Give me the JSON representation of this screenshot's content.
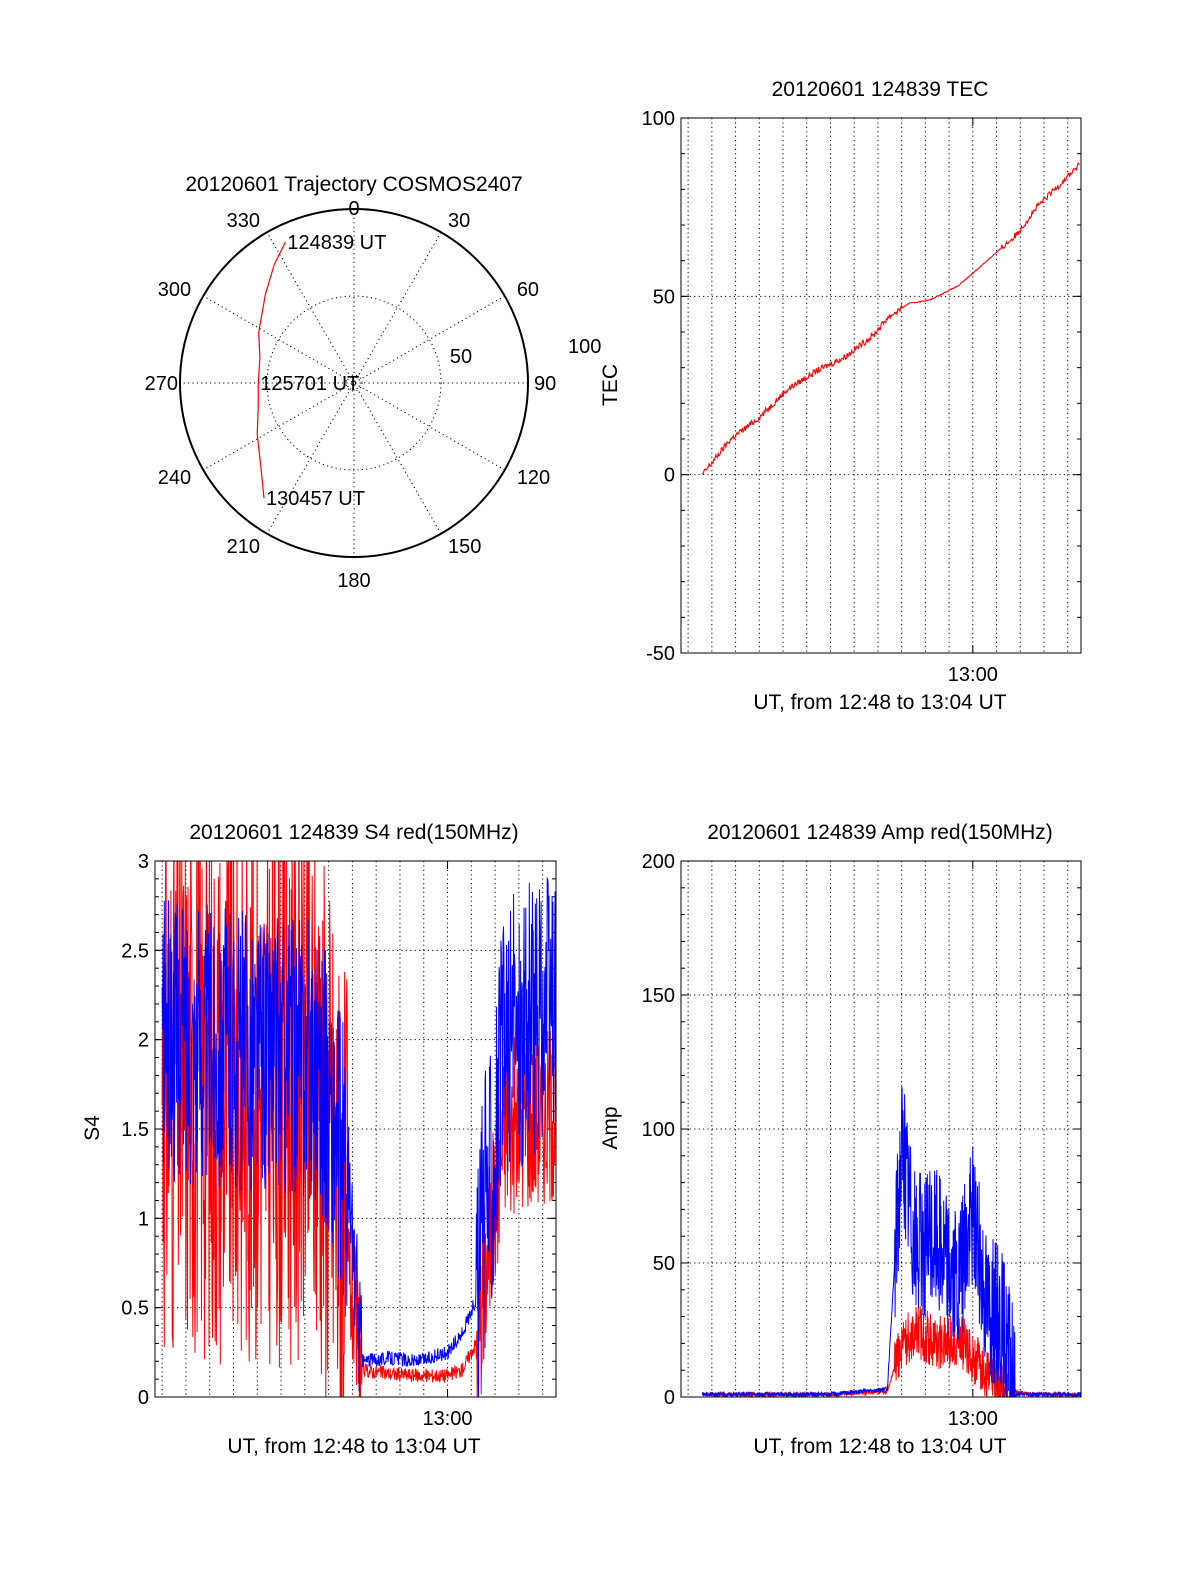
{
  "colors": {
    "red": "#ff0000",
    "blue": "#0000ff",
    "axis": "#000000"
  },
  "chart_data": [
    {
      "id": "trajectory",
      "type": "polar",
      "title": "20120601 Trajectory COSMOS2407",
      "azimuth_labels": [
        "0",
        "30",
        "60",
        "90",
        "120",
        "150",
        "180",
        "210",
        "240",
        "270",
        "300",
        "330"
      ],
      "radial_labels": [
        "50",
        "100"
      ],
      "r_range": [
        0,
        100
      ],
      "grid": true,
      "series": [
        {
          "color": "#ff0000",
          "points": [
            [
              334,
              90
            ],
            [
              326,
              82
            ],
            [
              315,
              72
            ],
            [
              298,
              62
            ],
            [
              285,
              56
            ],
            [
              270,
              55
            ],
            [
              255,
              57
            ],
            [
              242,
              63
            ],
            [
              228,
              72
            ],
            [
              218,
              84
            ]
          ]
        }
      ],
      "annotations": [
        {
          "text": "124839 UT",
          "az": 334,
          "r": 90
        },
        {
          "text": "125701 UT",
          "az": 270,
          "r": 55
        },
        {
          "text": "130457 UT",
          "az": 218,
          "r": 84
        }
      ]
    },
    {
      "id": "tec",
      "type": "line",
      "title": "20120601 124839 TEC",
      "xlabel": "UT, from 12:48 to 13:04 UT",
      "ylabel": "TEC",
      "xlim": [
        12.795,
        13.076
      ],
      "ylim": [
        -50,
        100
      ],
      "yticks": [
        -50,
        0,
        50,
        100
      ],
      "xticks": [
        {
          "value": 13.0,
          "label": "13:00"
        }
      ],
      "grid": true,
      "series": [
        {
          "color": "#ff0000",
          "x": [
            12.81,
            12.83,
            12.85,
            12.87,
            12.89,
            12.91,
            12.93,
            12.94,
            12.955,
            12.97,
            12.99,
            13.01,
            13.03,
            13.045,
            13.06,
            13.075
          ],
          "values": [
            0,
            10,
            16,
            24,
            29,
            33,
            39,
            44,
            48,
            49,
            53,
            60,
            67,
            75,
            81,
            87
          ]
        }
      ]
    },
    {
      "id": "s4",
      "type": "line",
      "title": "20120601 124839 S4 red(150MHz)",
      "xlabel": "UT, from 12:48 to 13:04 UT",
      "ylabel": "S4",
      "xlim": [
        12.795,
        13.076
      ],
      "ylim": [
        0,
        3
      ],
      "yticks": [
        0,
        0.5,
        1,
        1.5,
        2,
        2.5,
        3
      ],
      "xticks": [
        {
          "value": 13.0,
          "label": "13:00"
        }
      ],
      "grid": true,
      "series": [
        {
          "color": "#ff0000",
          "x": [
            12.8,
            12.91,
            12.92,
            12.93,
            12.94,
            12.96,
            12.98,
            13.0,
            13.01,
            13.02,
            13.04,
            13.076
          ],
          "values": [
            1.8,
            1.75,
            1.3,
            0.75,
            0.15,
            0.13,
            0.12,
            0.12,
            0.15,
            0.3,
            1.5,
            1.6
          ]
        },
        {
          "color": "#0000ff",
          "x": [
            12.8,
            12.91,
            12.92,
            12.93,
            12.94,
            12.96,
            12.98,
            13.0,
            13.01,
            13.02,
            13.04,
            13.076
          ],
          "values": [
            2.0,
            1.9,
            1.5,
            1.2,
            0.2,
            0.22,
            0.2,
            0.25,
            0.35,
            0.55,
            2.0,
            2.2
          ]
        }
      ]
    },
    {
      "id": "amp",
      "type": "line",
      "title": "20120601 124839 Amp red(150MHz)",
      "xlabel": "UT, from 12:48 to 13:04 UT",
      "ylabel": "Amp",
      "xlim": [
        12.795,
        13.076
      ],
      "ylim": [
        0,
        200
      ],
      "yticks": [
        0,
        50,
        100,
        150,
        200
      ],
      "xticks": [
        {
          "value": 13.0,
          "label": "13:00"
        }
      ],
      "grid": true,
      "series": [
        {
          "color": "#ff0000",
          "x": [
            12.81,
            12.9,
            12.94,
            12.95,
            12.96,
            12.975,
            12.99,
            13.0,
            13.01,
            13.02,
            13.04,
            13.076
          ],
          "values": [
            1,
            1,
            2,
            20,
            25,
            20,
            22,
            15,
            8,
            3,
            1,
            1
          ]
        },
        {
          "color": "#0000ff",
          "x": [
            12.81,
            12.9,
            12.94,
            12.95,
            12.96,
            12.975,
            12.99,
            13.0,
            13.01,
            13.02,
            13.025,
            13.03,
            13.076
          ],
          "values": [
            1,
            1,
            3,
            95,
            55,
            60,
            40,
            70,
            35,
            30,
            15,
            1,
            1
          ]
        }
      ]
    }
  ]
}
